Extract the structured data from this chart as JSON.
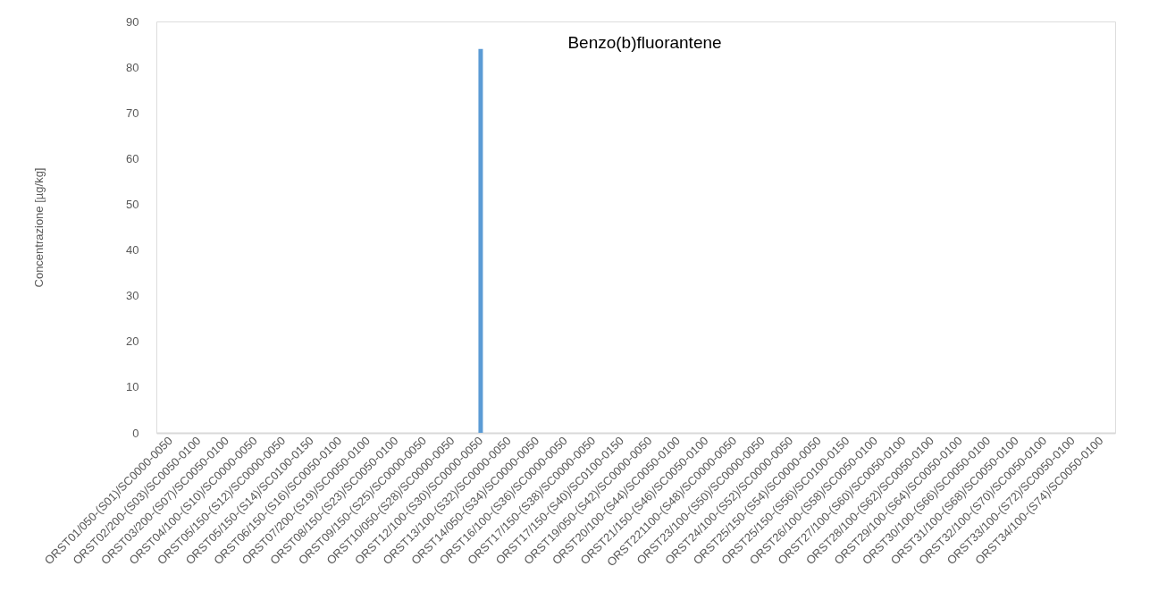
{
  "chart_data": {
    "type": "bar",
    "title": "Benzo(b)fluorantene",
    "ylabel": "Concentrazione [µg/kg]",
    "categories": [
      "ORST01/050-(S01)/SC0000-0050",
      "ORST02/200-(S03)/SC0050-0100",
      "ORST03/200-(S07)/SC0050-0100",
      "ORST04/100-(S10)/SC0000-0050",
      "ORST05/150-(S12)/SC0000-0050",
      "ORST05/150-(S14)/SC0100-0150",
      "ORST06/150-(S16)/SC0050-0100",
      "ORST07/200-(S19)/SC0050-0100",
      "ORST08/150-(S23)/SC0050-0100",
      "ORST09/150-(S25)/SC0000-0050",
      "ORST10/050-(S28)/SC0000-0050",
      "ORST12/100-(S30)/SC0000-0050",
      "ORST13/100-(S32)/SC0000-0050",
      "ORST14/050-(S34)/SC0000-0050",
      "ORST16/100-(S36)/SC0000-0050",
      "ORST17/150-(S38)/SC0000-0050",
      "ORST17/150-(S40)/SC0100-0150",
      "ORST19/050-(S42)/SC0000-0050",
      "ORST20/100-(S44)/SC0050-0100",
      "ORST21/150-(S46)/SC0050-0100",
      "ORST221100-(S48)/SC0000-0050",
      "ORST23/100-(S50)/SC0000-0050",
      "ORST24/100-(S52)/SC0000-0050",
      "ORST25/150-(S54)/SC0000-0050",
      "ORST25/150-(S56)/SC0100-0150",
      "ORST26/100-(S58)/SC0050-0100",
      "ORST27/100-(S60)/SC0050-0100",
      "ORST28/100-(S62)/SC0050-0100",
      "ORST29/100-(S64)/SC0050-0100",
      "ORST30/100-(S66)/SC0050-0100",
      "ORST31/100-(S68)/SC0050-0100",
      "ORST32/100-(S70)/SC0050-0100",
      "ORST33/100-(S72)/SC0050-0100",
      "ORST34/100-(S74)/SC0050-0100"
    ],
    "series": [
      {
        "color": "#5b9bd5",
        "values": [
          0,
          0,
          0,
          0,
          0,
          0,
          0,
          0,
          0,
          0,
          0,
          84,
          0,
          0,
          0,
          0,
          0,
          0,
          0,
          0,
          0,
          0,
          0,
          0,
          0,
          0,
          0,
          0,
          0,
          0,
          0,
          0,
          0,
          0
        ]
      }
    ],
    "ylim": [
      0,
      90
    ],
    "yticks": [
      0,
      10,
      20,
      30,
      40,
      50,
      60,
      70,
      80,
      90
    ],
    "grid": false
  }
}
